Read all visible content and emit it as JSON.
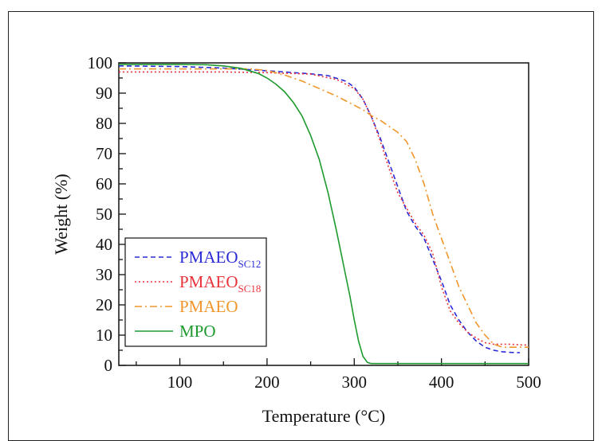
{
  "chart_data": {
    "type": "line",
    "xlabel": "Temperature (°C)",
    "ylabel": "Weight  (%)",
    "xlim": [
      30,
      500
    ],
    "ylim": [
      0,
      100
    ],
    "x_ticks": [
      100,
      200,
      300,
      400,
      500
    ],
    "y_ticks": [
      0,
      10,
      20,
      30,
      40,
      50,
      60,
      70,
      80,
      90,
      100
    ],
    "grid": false,
    "legend_position": "bottom-left",
    "series": [
      {
        "name": "PMAEO",
        "name_sub": "SC12",
        "color": "#2a2ad6",
        "dash": "dashed",
        "x": [
          30,
          100,
          150,
          200,
          250,
          270,
          290,
          300,
          310,
          320,
          330,
          340,
          350,
          360,
          370,
          380,
          390,
          400,
          410,
          420,
          430,
          440,
          450,
          460,
          470,
          480,
          490
        ],
        "y": [
          99,
          98.8,
          98.3,
          97.4,
          96.4,
          95.8,
          94,
          92,
          88,
          82,
          75,
          67,
          59,
          51,
          46,
          42,
          35,
          28,
          20,
          15,
          11,
          8,
          6,
          5,
          4.5,
          4.3,
          4.2
        ]
      },
      {
        "name": "PMAEO",
        "name_sub": "SC18",
        "color": "#e8333a",
        "dash": "dotted",
        "x": [
          30,
          100,
          150,
          200,
          250,
          280,
          300,
          310,
          320,
          330,
          340,
          350,
          360,
          370,
          380,
          390,
          400,
          410,
          420,
          430,
          440,
          450,
          460,
          470,
          480,
          490,
          500
        ],
        "y": [
          97,
          97,
          97,
          96.8,
          96.3,
          94.5,
          91.5,
          88,
          82,
          74,
          65,
          57,
          52,
          47,
          43,
          37,
          26,
          18,
          14,
          11,
          9,
          7.5,
          7,
          7,
          7,
          6.8,
          6.7
        ]
      },
      {
        "name": "PMAEO",
        "color": "#f0962a",
        "dash": "dashdot",
        "x": [
          30,
          100,
          150,
          180,
          200,
          220,
          240,
          260,
          280,
          300,
          310,
          320,
          330,
          340,
          350,
          360,
          370,
          380,
          390,
          400,
          410,
          420,
          430,
          440,
          450,
          460,
          470,
          480,
          490,
          500
        ],
        "y": [
          98,
          98,
          98,
          98,
          97.5,
          96,
          94,
          91.5,
          89,
          86,
          84.5,
          82.5,
          81,
          79,
          77,
          74,
          68,
          60,
          50,
          42,
          34,
          26,
          20,
          14,
          10,
          7,
          6,
          6,
          6,
          6
        ]
      },
      {
        "name": "MPO",
        "color": "#1e9a2e",
        "dash": "solid",
        "x": [
          30,
          100,
          130,
          150,
          170,
          190,
          200,
          210,
          220,
          230,
          240,
          250,
          260,
          270,
          280,
          290,
          295,
          300,
          305,
          310,
          315,
          318,
          320,
          330,
          400,
          500
        ],
        "y": [
          99.5,
          99.5,
          99.4,
          99,
          98.2,
          96.5,
          95,
          93,
          90.5,
          87,
          82.5,
          76,
          68,
          57,
          44,
          30,
          23,
          15,
          8,
          3,
          1,
          0.7,
          0.6,
          0.6,
          0.6,
          0.6
        ]
      }
    ]
  }
}
